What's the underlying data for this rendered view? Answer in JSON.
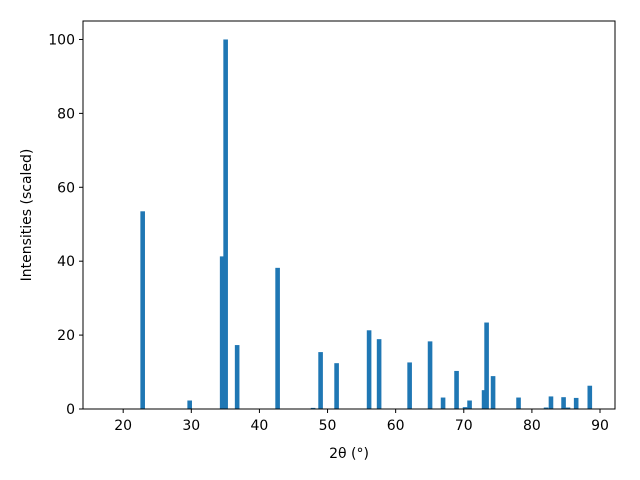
{
  "chart_data": {
    "type": "bar",
    "x_label": "2θ (°)",
    "y_label": "Intensities (scaled)",
    "x": [
      22.86,
      29.76,
      34.53,
      35.04,
      36.73,
      42.67,
      47.88,
      48.98,
      51.33,
      56.1,
      57.57,
      62.05,
      65.05,
      66.96,
      68.94,
      70.19,
      70.85,
      72.98,
      73.35,
      74.3,
      78.04,
      82.08,
      82.8,
      84.65,
      85.3,
      86.5,
      88.5
    ],
    "values": [
      53.5,
      2.3,
      41.3,
      100,
      17.3,
      38.2,
      0.3,
      15.4,
      12.4,
      21.3,
      18.9,
      12.6,
      18.3,
      3.1,
      10.3,
      0.5,
      2.3,
      5.1,
      23.4,
      8.9,
      3.1,
      0.4,
      3.4,
      3.2,
      0.4,
      3.0,
      6.3
    ],
    "color": "#1f77b4",
    "xlim": [
      14.1,
      92.2
    ],
    "xticks": [
      20,
      30,
      40,
      50,
      60,
      70,
      80,
      90
    ],
    "ylim": [
      0,
      105
    ],
    "yticks": [
      0,
      20,
      40,
      60,
      80,
      100
    ],
    "grid": false
  }
}
